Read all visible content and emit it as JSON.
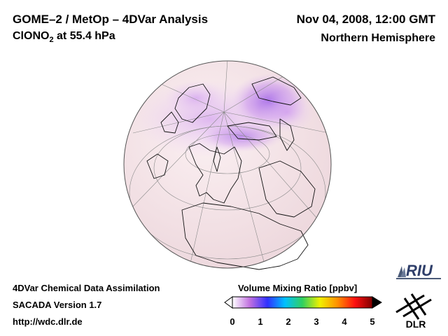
{
  "header": {
    "title": "GOME–2 / MetOp – 4DVar Analysis",
    "species_prefix": "ClONO",
    "species_sub": "2",
    "species_suffix": " at 55.4 hPa",
    "date": "Nov 04, 2008, 12:00 GMT",
    "region": "Northern Hemisphere"
  },
  "footer": {
    "line1": "4DVar Chemical Data Assimilation",
    "line2": "SACADA Version 1.7",
    "line3": "http://wdc.dlr.de"
  },
  "colorbar": {
    "title": "Volume Mixing Ratio [ppbv]",
    "ticks": [
      "0",
      "1",
      "2",
      "3",
      "4",
      "5"
    ],
    "min": 0,
    "max": 5,
    "colors": [
      "#ffffff",
      "#c070e0",
      "#3030ff",
      "#00c0ff",
      "#30d060",
      "#f0f000",
      "#ff9000",
      "#ff1010",
      "#800000"
    ]
  },
  "logos": {
    "riu": "RIU",
    "dlr": "DLR"
  },
  "map": {
    "projection": "orthographic",
    "center": "Northern Hemisphere",
    "ocean_color": "#f6e8ec",
    "land_color": "#f8e6ea",
    "vortex_color": "#b070e0"
  }
}
